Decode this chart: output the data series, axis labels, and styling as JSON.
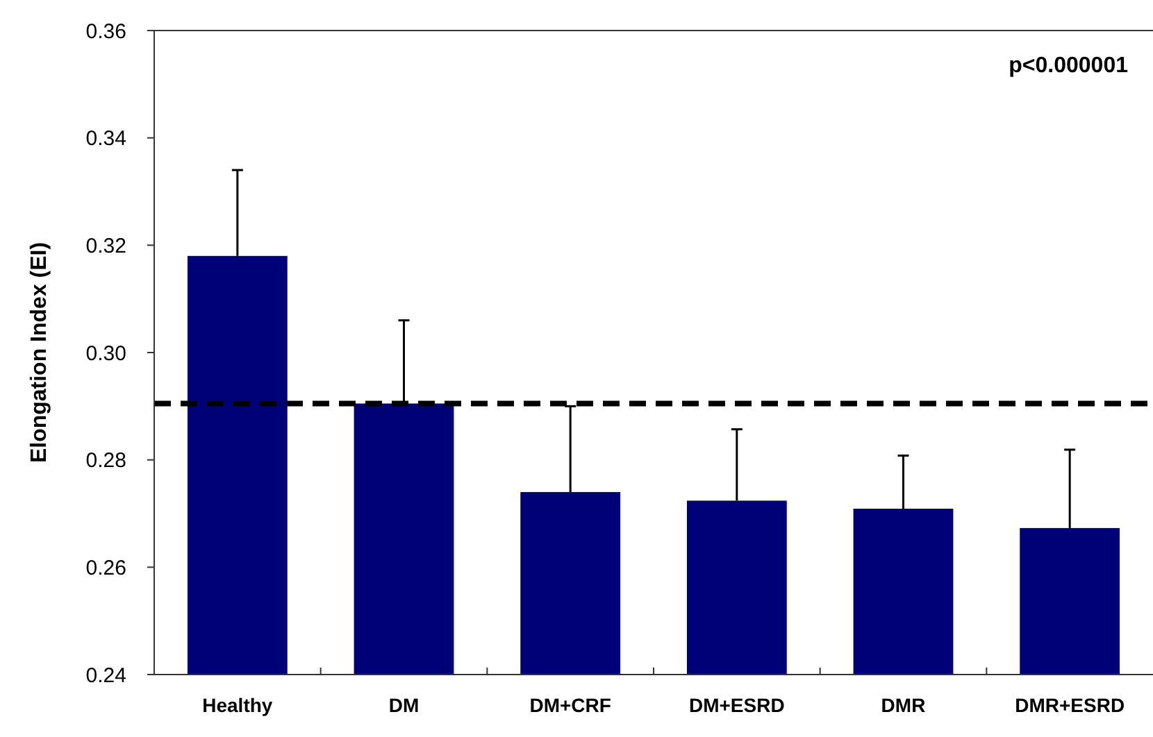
{
  "chart_data": {
    "type": "bar",
    "ylabel": "Elongation Index (EI)",
    "categories": [
      "Healthy",
      "DM",
      "DM+CRF",
      "DM+ESRD",
      "DMR",
      "DMR+ESRD"
    ],
    "values": [
      0.318,
      0.2905,
      0.274,
      0.2724,
      0.2709,
      0.2673
    ],
    "errors": [
      0.016,
      0.0155,
      0.016,
      0.0133,
      0.0099,
      0.0146
    ],
    "color": "#000077",
    "ylim": [
      0.24,
      0.36
    ],
    "yticks": [
      {
        "value": 0.24,
        "label": "0.24"
      },
      {
        "value": 0.26,
        "label": "0.26"
      },
      {
        "value": 0.28,
        "label": "0.28"
      },
      {
        "value": 0.3,
        "label": "0.30"
      },
      {
        "value": 0.32,
        "label": "0.32"
      },
      {
        "value": 0.34,
        "label": "0.34"
      },
      {
        "value": 0.36,
        "label": "0.36"
      }
    ],
    "ref_lines": [
      {
        "axis": "y",
        "value": 0.2905,
        "color": "#000000",
        "line_style": "dashed"
      }
    ],
    "annotations": [
      "p<0.000001"
    ],
    "grid": false
  }
}
